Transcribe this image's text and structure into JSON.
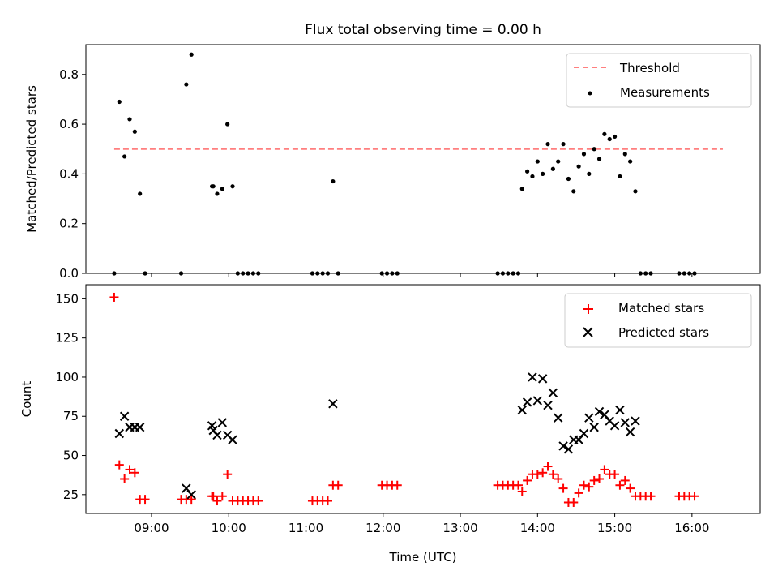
{
  "chart_data": [
    {
      "type": "scatter",
      "title": "Flux total observing time = 0.00 h",
      "xlabel": "",
      "ylabel": "Matched/Predicted stars",
      "ylim": [
        0,
        0.92
      ],
      "yticks": [
        0.0,
        0.2,
        0.4,
        0.6,
        0.8
      ],
      "ytick_labels": [
        "0.0",
        "0.2",
        "0.4",
        "0.6",
        "0.8"
      ],
      "threshold": {
        "name": "Threshold",
        "value": 0.5,
        "x_range": [
          "08:31",
          "16:24"
        ],
        "color": "#ff7f7f",
        "style": "dashed"
      },
      "legend": {
        "position": "top-right",
        "entries": [
          "Threshold",
          "Measurements"
        ]
      },
      "series": [
        {
          "name": "Measurements",
          "marker": "dot",
          "color": "#000000",
          "points": [
            [
              "08:31",
              0.0
            ],
            [
              "08:35",
              0.69
            ],
            [
              "08:39",
              0.47
            ],
            [
              "08:43",
              0.62
            ],
            [
              "08:47",
              0.57
            ],
            [
              "08:51",
              0.32
            ],
            [
              "08:55",
              0.0
            ],
            [
              "09:23",
              0.0
            ],
            [
              "09:27",
              0.76
            ],
            [
              "09:31",
              0.88
            ],
            [
              "09:47",
              0.35
            ],
            [
              "09:48",
              0.35
            ],
            [
              "09:51",
              0.32
            ],
            [
              "09:55",
              0.34
            ],
            [
              "09:59",
              0.6
            ],
            [
              "10:03",
              0.35
            ],
            [
              "10:07",
              0.0
            ],
            [
              "10:11",
              0.0
            ],
            [
              "10:15",
              0.0
            ],
            [
              "10:19",
              0.0
            ],
            [
              "10:23",
              0.0
            ],
            [
              "11:05",
              0.0
            ],
            [
              "11:09",
              0.0
            ],
            [
              "11:13",
              0.0
            ],
            [
              "11:17",
              0.0
            ],
            [
              "11:21",
              0.37
            ],
            [
              "11:25",
              0.0
            ],
            [
              "11:59",
              0.0
            ],
            [
              "12:03",
              0.0
            ],
            [
              "12:07",
              0.0
            ],
            [
              "12:11",
              0.0
            ],
            [
              "13:29",
              0.0
            ],
            [
              "13:33",
              0.0
            ],
            [
              "13:37",
              0.0
            ],
            [
              "13:41",
              0.0
            ],
            [
              "13:45",
              0.0
            ],
            [
              "13:48",
              0.34
            ],
            [
              "13:52",
              0.41
            ],
            [
              "13:56",
              0.39
            ],
            [
              "14:00",
              0.45
            ],
            [
              "14:04",
              0.4
            ],
            [
              "14:08",
              0.52
            ],
            [
              "14:12",
              0.42
            ],
            [
              "14:16",
              0.45
            ],
            [
              "14:20",
              0.52
            ],
            [
              "14:24",
              0.38
            ],
            [
              "14:28",
              0.33
            ],
            [
              "14:32",
              0.43
            ],
            [
              "14:36",
              0.48
            ],
            [
              "14:40",
              0.4
            ],
            [
              "14:44",
              0.5
            ],
            [
              "14:48",
              0.46
            ],
            [
              "14:52",
              0.56
            ],
            [
              "14:56",
              0.54
            ],
            [
              "15:00",
              0.55
            ],
            [
              "15:04",
              0.39
            ],
            [
              "15:08",
              0.48
            ],
            [
              "15:12",
              0.45
            ],
            [
              "15:16",
              0.33
            ],
            [
              "15:20",
              0.0
            ],
            [
              "15:24",
              0.0
            ],
            [
              "15:28",
              0.0
            ],
            [
              "15:50",
              0.0
            ],
            [
              "15:54",
              0.0
            ],
            [
              "15:58",
              0.0
            ],
            [
              "16:02",
              0.0
            ]
          ]
        }
      ]
    },
    {
      "type": "scatter",
      "title": "",
      "xlabel": "Time (UTC)",
      "ylabel": "Count",
      "ylim": [
        13,
        159
      ],
      "yticks": [
        25,
        50,
        75,
        100,
        125,
        150
      ],
      "ytick_labels": [
        "25",
        "50",
        "75",
        "100",
        "125",
        "150"
      ],
      "xlim": [
        "08:09",
        "16:53"
      ],
      "xticks": [
        "09:00",
        "10:00",
        "11:00",
        "12:00",
        "13:00",
        "14:00",
        "15:00",
        "16:00"
      ],
      "xtick_labels": [
        "09:00",
        "10:00",
        "11:00",
        "12:00",
        "13:00",
        "14:00",
        "15:00",
        "16:00"
      ],
      "legend": {
        "position": "top-right",
        "entries": [
          "Matched stars",
          "Predicted stars"
        ]
      },
      "series": [
        {
          "name": "Matched stars",
          "marker": "plus",
          "color": "#ff0000",
          "points": [
            [
              "08:31",
              151
            ],
            [
              "08:35",
              44
            ],
            [
              "08:39",
              35
            ],
            [
              "08:43",
              41
            ],
            [
              "08:47",
              39
            ],
            [
              "08:51",
              22
            ],
            [
              "08:55",
              22
            ],
            [
              "09:23",
              22
            ],
            [
              "09:27",
              22
            ],
            [
              "09:31",
              22
            ],
            [
              "09:47",
              24
            ],
            [
              "09:48",
              24
            ],
            [
              "09:51",
              21
            ],
            [
              "09:55",
              24
            ],
            [
              "09:59",
              38
            ],
            [
              "10:03",
              21
            ],
            [
              "10:07",
              21
            ],
            [
              "10:11",
              21
            ],
            [
              "10:15",
              21
            ],
            [
              "10:19",
              21
            ],
            [
              "10:23",
              21
            ],
            [
              "11:05",
              21
            ],
            [
              "11:09",
              21
            ],
            [
              "11:13",
              21
            ],
            [
              "11:17",
              21
            ],
            [
              "11:21",
              31
            ],
            [
              "11:25",
              31
            ],
            [
              "11:59",
              31
            ],
            [
              "12:03",
              31
            ],
            [
              "12:07",
              31
            ],
            [
              "12:11",
              31
            ],
            [
              "13:29",
              31
            ],
            [
              "13:33",
              31
            ],
            [
              "13:37",
              31
            ],
            [
              "13:41",
              31
            ],
            [
              "13:45",
              31
            ],
            [
              "13:48",
              27
            ],
            [
              "13:52",
              34
            ],
            [
              "13:56",
              38
            ],
            [
              "14:00",
              38
            ],
            [
              "14:04",
              39
            ],
            [
              "14:08",
              43
            ],
            [
              "14:12",
              38
            ],
            [
              "14:16",
              35
            ],
            [
              "14:20",
              29
            ],
            [
              "14:24",
              20
            ],
            [
              "14:28",
              20
            ],
            [
              "14:32",
              26
            ],
            [
              "14:36",
              31
            ],
            [
              "14:40",
              30
            ],
            [
              "14:44",
              34
            ],
            [
              "14:48",
              35
            ],
            [
              "14:52",
              41
            ],
            [
              "14:56",
              38
            ],
            [
              "15:00",
              38
            ],
            [
              "15:04",
              31
            ],
            [
              "15:08",
              34
            ],
            [
              "15:12",
              29
            ],
            [
              "15:16",
              24
            ],
            [
              "15:20",
              24
            ],
            [
              "15:24",
              24
            ],
            [
              "15:28",
              24
            ],
            [
              "15:50",
              24
            ],
            [
              "15:54",
              24
            ],
            [
              "15:58",
              24
            ],
            [
              "16:02",
              24
            ]
          ]
        },
        {
          "name": "Predicted stars",
          "marker": "x",
          "color": "#000000",
          "points": [
            [
              "08:35",
              64
            ],
            [
              "08:39",
              75
            ],
            [
              "08:43",
              68
            ],
            [
              "08:47",
              68
            ],
            [
              "08:51",
              68
            ],
            [
              "09:27",
              29
            ],
            [
              "09:31",
              25
            ],
            [
              "09:47",
              69
            ],
            [
              "09:48",
              66
            ],
            [
              "09:51",
              63
            ],
            [
              "09:55",
              71
            ],
            [
              "09:59",
              63
            ],
            [
              "10:03",
              60
            ],
            [
              "11:21",
              83
            ],
            [
              "13:48",
              79
            ],
            [
              "13:52",
              84
            ],
            [
              "13:56",
              100
            ],
            [
              "14:00",
              85
            ],
            [
              "14:04",
              99
            ],
            [
              "14:08",
              82
            ],
            [
              "14:12",
              90
            ],
            [
              "14:16",
              74
            ],
            [
              "14:20",
              56
            ],
            [
              "14:24",
              54
            ],
            [
              "14:28",
              60
            ],
            [
              "14:32",
              60
            ],
            [
              "14:36",
              64
            ],
            [
              "14:40",
              74
            ],
            [
              "14:44",
              68
            ],
            [
              "14:48",
              78
            ],
            [
              "14:52",
              76
            ],
            [
              "14:56",
              72
            ],
            [
              "15:00",
              69
            ],
            [
              "15:04",
              79
            ],
            [
              "15:08",
              71
            ],
            [
              "15:12",
              65
            ],
            [
              "15:16",
              72
            ]
          ]
        }
      ]
    }
  ]
}
